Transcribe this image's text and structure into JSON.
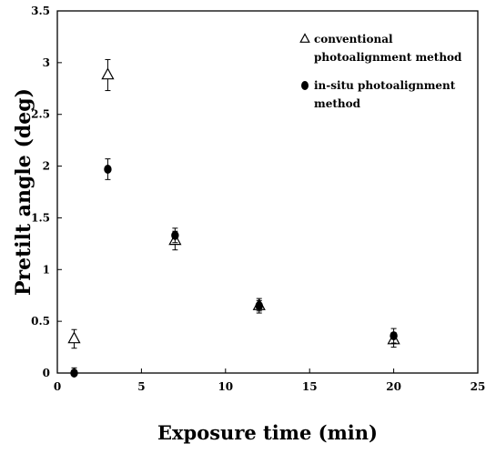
{
  "chart_data": {
    "type": "scatter",
    "title": "",
    "xlabel": "Exposure time (min)",
    "ylabel": "Pretilt angle (deg)",
    "xlim": [
      0,
      25
    ],
    "ylim": [
      0,
      3.5
    ],
    "x_ticks": [
      "0",
      "5",
      "10",
      "15",
      "20",
      "25"
    ],
    "y_ticks": [
      "0",
      "0.5",
      "1",
      "1.5",
      "2",
      "2.5",
      "3",
      "3.5"
    ],
    "grid": false,
    "legend_position": "top-right",
    "series": [
      {
        "name": "conventional photoalignment method",
        "legend_lines": [
          "conventional",
          "photoalignment method"
        ],
        "marker": "open-triangle",
        "color": "#000000",
        "points": [
          {
            "x": 1,
            "y": 0.33,
            "err": 0.09
          },
          {
            "x": 3,
            "y": 2.88,
            "err": 0.15
          },
          {
            "x": 7,
            "y": 1.28,
            "err": 0.09
          },
          {
            "x": 12,
            "y": 0.65,
            "err": 0.07
          },
          {
            "x": 20,
            "y": 0.32,
            "err": 0.07
          }
        ]
      },
      {
        "name": "in-situ photoalignment method",
        "legend_lines": [
          "in-situ photoalignment",
          "method"
        ],
        "marker": "filled-circle",
        "color": "#000000",
        "points": [
          {
            "x": 1,
            "y": 0.0,
            "err": 0.05
          },
          {
            "x": 3,
            "y": 1.97,
            "err": 0.1
          },
          {
            "x": 7,
            "y": 1.33,
            "err": 0.07
          },
          {
            "x": 12,
            "y": 0.65,
            "err": 0.05
          },
          {
            "x": 20,
            "y": 0.36,
            "err": 0.07
          }
        ]
      }
    ]
  }
}
